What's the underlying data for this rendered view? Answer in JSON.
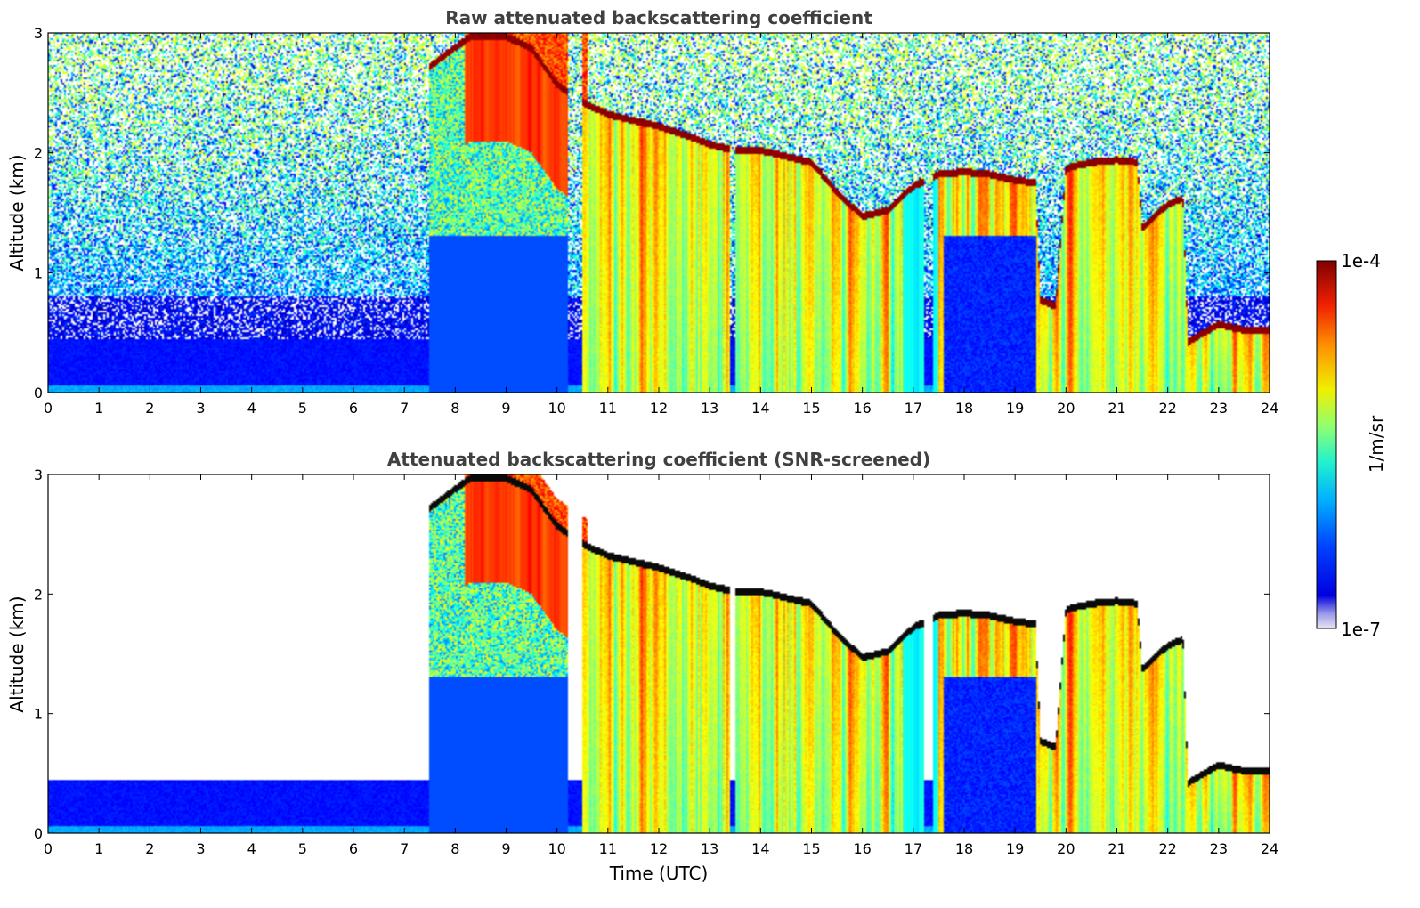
{
  "chart_data": [
    {
      "type": "heatmap",
      "title": "Raw attenuated backscattering coefficient",
      "xlabel": "",
      "ylabel": "Altitude (km)",
      "xlim": [
        0,
        24
      ],
      "ylim": [
        0,
        3
      ],
      "x_ticks": [
        "0",
        "1",
        "2",
        "3",
        "4",
        "5",
        "6",
        "7",
        "8",
        "9",
        "10",
        "11",
        "12",
        "13",
        "14",
        "15",
        "16",
        "17",
        "18",
        "19",
        "20",
        "21",
        "22",
        "23",
        "24"
      ],
      "y_ticks": [
        "0",
        "1",
        "2",
        "3"
      ],
      "colormap": "jet",
      "screened": false
    },
    {
      "type": "heatmap",
      "title": "Attenuated backscattering coefficient (SNR-screened)",
      "xlabel": "Time (UTC)",
      "ylabel": "Altitude (km)",
      "xlim": [
        0,
        24
      ],
      "ylim": [
        0,
        3
      ],
      "x_ticks": [
        "0",
        "1",
        "2",
        "3",
        "4",
        "5",
        "6",
        "7",
        "8",
        "9",
        "10",
        "11",
        "12",
        "13",
        "14",
        "15",
        "16",
        "17",
        "18",
        "19",
        "20",
        "21",
        "22",
        "23",
        "24"
      ],
      "y_ticks": [
        "0",
        "1",
        "2",
        "3"
      ],
      "colormap": "jet",
      "screened": true
    }
  ],
  "colorbar": {
    "label": "1/m/sr",
    "max_label": "1e-4",
    "min_label": "1e-7",
    "range": [
      1e-07,
      0.0001
    ],
    "scale": "log"
  },
  "layers": {
    "cloud_top_km": [
      [
        7.5,
        2.75
      ],
      [
        8.3,
        3.0
      ],
      [
        9.0,
        3.0
      ],
      [
        9.5,
        2.9
      ],
      [
        10.0,
        2.6
      ],
      [
        10.5,
        2.45
      ],
      [
        11.0,
        2.35
      ],
      [
        12.0,
        2.25
      ],
      [
        12.7,
        2.15
      ],
      [
        13.0,
        2.1
      ],
      [
        13.5,
        2.05
      ],
      [
        14.0,
        2.05
      ],
      [
        14.5,
        2.0
      ],
      [
        15.0,
        1.95
      ],
      [
        15.5,
        1.7
      ],
      [
        16.0,
        1.5
      ],
      [
        16.5,
        1.55
      ],
      [
        17.0,
        1.75
      ],
      [
        17.5,
        1.85
      ],
      [
        18.0,
        1.87
      ],
      [
        18.5,
        1.85
      ],
      [
        19.0,
        1.8
      ],
      [
        19.4,
        1.78
      ],
      [
        19.5,
        0.8
      ],
      [
        19.8,
        0.75
      ],
      [
        20.0,
        1.9
      ],
      [
        20.5,
        1.95
      ],
      [
        21.0,
        1.97
      ],
      [
        21.4,
        1.95
      ],
      [
        21.5,
        1.4
      ],
      [
        22.0,
        1.6
      ],
      [
        22.3,
        1.65
      ],
      [
        22.4,
        0.45
      ],
      [
        23.0,
        0.6
      ],
      [
        23.5,
        0.55
      ],
      [
        24.0,
        0.55
      ]
    ],
    "clear_gaps_h": [
      [
        10.2,
        10.5
      ],
      [
        13.4,
        13.5
      ],
      [
        17.2,
        17.4
      ]
    ],
    "boundary_layer_km": 0.45
  },
  "colors": {
    "jet_low": "#00007f",
    "jet_high": "#7f0000",
    "cloud_top_in_screened": "#000000"
  }
}
